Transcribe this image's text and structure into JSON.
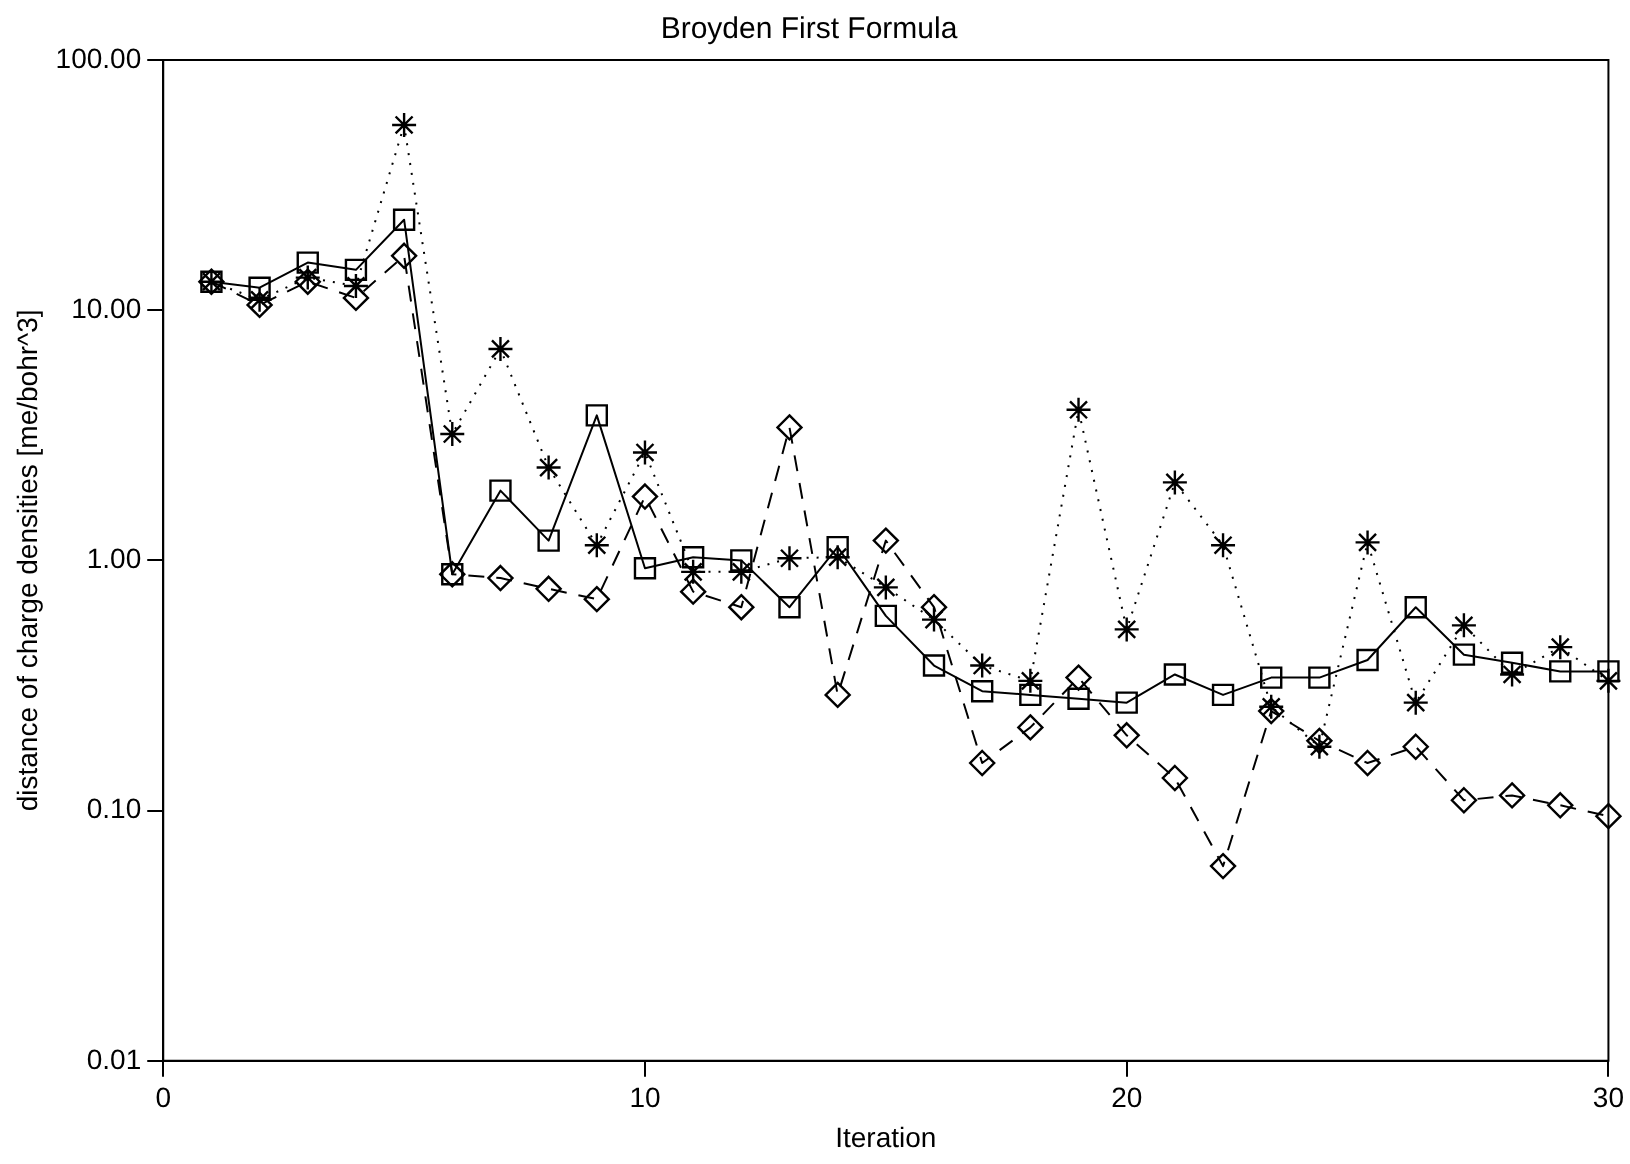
{
  "chart_data": {
    "type": "line",
    "title": "Broyden First Formula",
    "xlabel": "Iteration",
    "ylabel": "distance of charge densities [me/bohr^3]",
    "x": [
      1,
      2,
      3,
      4,
      5,
      6,
      7,
      8,
      9,
      10,
      11,
      12,
      13,
      14,
      15,
      16,
      17,
      18,
      19,
      20,
      21,
      22,
      23,
      24,
      25,
      26,
      27,
      28,
      29,
      30
    ],
    "series": [
      {
        "color": "#000000",
        "marker": "square",
        "line_style": "solid",
        "values": [
          13,
          12.3,
          15.5,
          14.5,
          23,
          0.88,
          1.9,
          1.2,
          3.8,
          0.93,
          1.03,
          1.0,
          0.65,
          1.13,
          0.6,
          0.38,
          0.3,
          0.29,
          0.28,
          0.27,
          0.35,
          0.29,
          0.34,
          0.34,
          0.4,
          0.65,
          0.42,
          0.39,
          0.36,
          0.36
        ]
      },
      {
        "color": "#000000",
        "marker": "cross",
        "line_style": "dotted",
        "values": [
          13,
          11,
          13.5,
          12.5,
          55,
          3.2,
          7,
          2.35,
          1.15,
          2.7,
          0.9,
          0.9,
          1.02,
          1.03,
          0.78,
          0.58,
          0.38,
          0.33,
          4.0,
          0.53,
          2.05,
          1.15,
          0.26,
          0.18,
          1.18,
          0.27,
          0.55,
          0.35,
          0.45,
          0.33
        ]
      },
      {
        "color": "#000000",
        "marker": "diamond",
        "line_style": "dashed",
        "values": [
          13,
          10.5,
          13,
          11.2,
          16.5,
          0.88,
          0.85,
          0.77,
          0.7,
          1.8,
          0.75,
          0.65,
          3.4,
          0.29,
          1.2,
          0.65,
          0.155,
          0.215,
          0.34,
          0.2,
          0.135,
          0.06,
          0.25,
          0.19,
          0.155,
          0.18,
          0.11,
          0.115,
          0.105,
          0.095
        ]
      }
    ],
    "log": "y",
    "grid": false,
    "legend": false,
    "xlim": [
      0,
      30
    ],
    "xticks": [
      0,
      10,
      20,
      30
    ],
    "ylim": [
      0.01,
      100
    ],
    "yticks": [
      {
        "value": 0.01,
        "label": "0.01"
      },
      {
        "value": 0.1,
        "label": "0.10"
      },
      {
        "value": 1,
        "label": "1.00"
      },
      {
        "value": 10,
        "label": "10.00"
      },
      {
        "value": 100,
        "label": "100.00"
      }
    ]
  }
}
